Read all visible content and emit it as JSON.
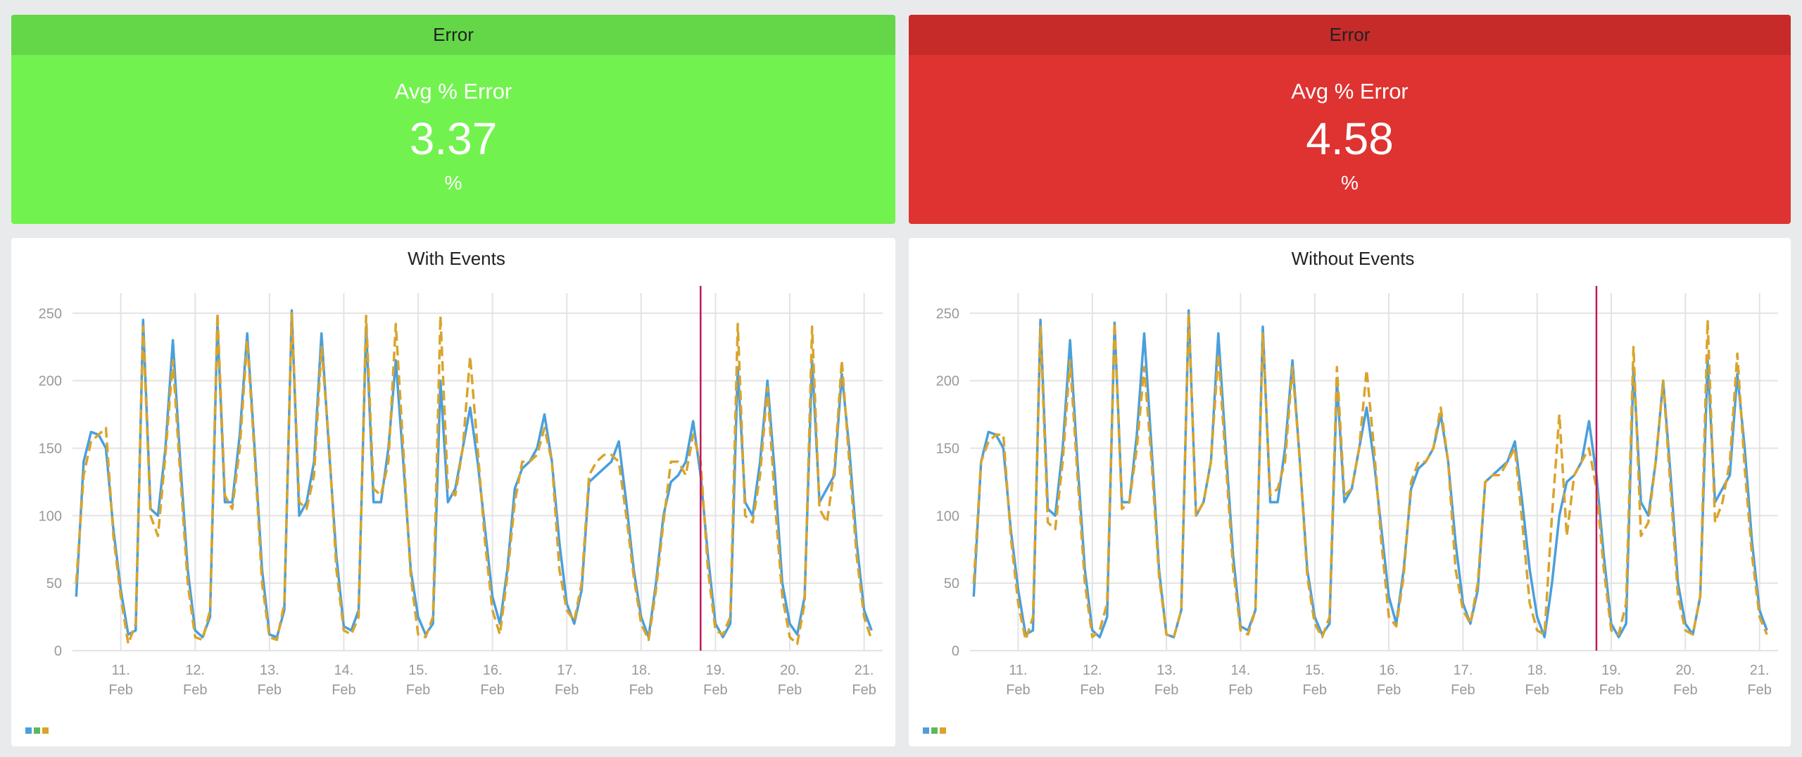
{
  "panels": [
    {
      "header": "Error",
      "label": "Avg % Error",
      "value": "3.37",
      "unit": "%",
      "header_color": "#63d748",
      "color": "#72f24e"
    },
    {
      "header": "Error",
      "label": "Avg % Error",
      "value": "4.58",
      "unit": "%",
      "header_color": "#c62b2a",
      "color": "#de3331"
    }
  ],
  "chart_data": [
    {
      "type": "line",
      "title": "With Events",
      "x": [
        10.4,
        10.5,
        10.6,
        10.7,
        10.8,
        10.9,
        11.0,
        11.1,
        11.2,
        11.3,
        11.4,
        11.5,
        11.6,
        11.7,
        11.8,
        11.9,
        12.0,
        12.1,
        12.2,
        12.3,
        12.4,
        12.5,
        12.6,
        12.7,
        12.8,
        12.9,
        13.0,
        13.1,
        13.2,
        13.3,
        13.4,
        13.5,
        13.6,
        13.7,
        13.8,
        13.9,
        14.0,
        14.1,
        14.2,
        14.3,
        14.4,
        14.5,
        14.6,
        14.7,
        14.8,
        14.9,
        15.0,
        15.1,
        15.2,
        15.3,
        15.4,
        15.5,
        15.6,
        15.7,
        15.8,
        15.9,
        16.0,
        16.1,
        16.2,
        16.3,
        16.4,
        16.5,
        16.6,
        16.7,
        16.8,
        16.9,
        17.0,
        17.1,
        17.2,
        17.3,
        17.4,
        17.5,
        17.6,
        17.7,
        17.8,
        17.9,
        18.0,
        18.1,
        18.2,
        18.3,
        18.4,
        18.5,
        18.6,
        18.7,
        18.8,
        18.9,
        19.0,
        19.1,
        19.2,
        19.3,
        19.4,
        19.5,
        19.6,
        19.7,
        19.8,
        19.9,
        20.0,
        20.1,
        20.2,
        20.3,
        20.4,
        20.5,
        20.6,
        20.7,
        20.8,
        20.9,
        21.0,
        21.1
      ],
      "xlim": [
        10.35,
        21.25
      ],
      "xticks": [
        {
          "value": 11,
          "label": "11. Feb"
        },
        {
          "value": 12,
          "label": "12. Feb"
        },
        {
          "value": 13,
          "label": "13. Feb"
        },
        {
          "value": 14,
          "label": "14. Feb"
        },
        {
          "value": 15,
          "label": "15. Feb"
        },
        {
          "value": 16,
          "label": "16. Feb"
        },
        {
          "value": 17,
          "label": "17. Feb"
        },
        {
          "value": 18,
          "label": "18. Feb"
        },
        {
          "value": 19,
          "label": "19. Feb"
        },
        {
          "value": 20,
          "label": "20. Feb"
        },
        {
          "value": 21,
          "label": "21. Feb"
        }
      ],
      "ylim": [
        0,
        265
      ],
      "yticks": [
        0,
        50,
        100,
        150,
        200,
        250
      ],
      "grid": true,
      "vline": {
        "x": 18.8,
        "color": "#c2185b"
      },
      "legend_colors": [
        "#4a9fdc",
        "#5cb85c",
        "#d9a42c"
      ],
      "series": [
        {
          "color": "#4a9fdc",
          "dashed": false,
          "values": [
            40,
            140,
            162,
            160,
            150,
            90,
            45,
            12,
            15,
            245,
            105,
            100,
            150,
            230,
            140,
            60,
            15,
            10,
            25,
            243,
            110,
            110,
            160,
            235,
            150,
            60,
            12,
            10,
            30,
            252,
            100,
            110,
            140,
            235,
            150,
            70,
            18,
            15,
            30,
            240,
            110,
            110,
            150,
            215,
            140,
            60,
            25,
            12,
            20,
            200,
            110,
            120,
            150,
            180,
            140,
            90,
            40,
            20,
            60,
            120,
            135,
            140,
            150,
            175,
            140,
            80,
            35,
            20,
            45,
            125,
            130,
            135,
            140,
            155,
            110,
            60,
            25,
            10,
            50,
            100,
            125,
            130,
            140,
            170,
            130,
            70,
            20,
            10,
            20,
            210,
            110,
            100,
            140,
            200,
            130,
            50,
            20,
            12,
            40,
            215,
            110,
            120,
            130,
            205,
            150,
            80,
            30,
            15
          ]
        },
        {
          "color": "#d9a42c",
          "dashed": true,
          "values": [
            50,
            130,
            155,
            160,
            165,
            85,
            40,
            5,
            20,
            240,
            100,
            85,
            145,
            215,
            130,
            50,
            10,
            8,
            30,
            250,
            115,
            105,
            150,
            230,
            145,
            50,
            10,
            8,
            35,
            250,
            110,
            105,
            130,
            225,
            155,
            60,
            15,
            12,
            25,
            248,
            120,
            115,
            140,
            242,
            150,
            55,
            12,
            10,
            25,
            248,
            120,
            115,
            150,
            218,
            150,
            80,
            30,
            12,
            55,
            110,
            140,
            140,
            145,
            165,
            140,
            60,
            30,
            22,
            50,
            130,
            140,
            145,
            145,
            140,
            100,
            55,
            20,
            8,
            45,
            95,
            140,
            140,
            130,
            160,
            140,
            60,
            15,
            12,
            25,
            242,
            100,
            95,
            130,
            195,
            110,
            40,
            10,
            5,
            35,
            240,
            105,
            95,
            135,
            215,
            140,
            70,
            25,
            8
          ]
        }
      ]
    },
    {
      "type": "line",
      "title": "Without Events",
      "x": [
        10.4,
        10.5,
        10.6,
        10.7,
        10.8,
        10.9,
        11.0,
        11.1,
        11.2,
        11.3,
        11.4,
        11.5,
        11.6,
        11.7,
        11.8,
        11.9,
        12.0,
        12.1,
        12.2,
        12.3,
        12.4,
        12.5,
        12.6,
        12.7,
        12.8,
        12.9,
        13.0,
        13.1,
        13.2,
        13.3,
        13.4,
        13.5,
        13.6,
        13.7,
        13.8,
        13.9,
        14.0,
        14.1,
        14.2,
        14.3,
        14.4,
        14.5,
        14.6,
        14.7,
        14.8,
        14.9,
        15.0,
        15.1,
        15.2,
        15.3,
        15.4,
        15.5,
        15.6,
        15.7,
        15.8,
        15.9,
        16.0,
        16.1,
        16.2,
        16.3,
        16.4,
        16.5,
        16.6,
        16.7,
        16.8,
        16.9,
        17.0,
        17.1,
        17.2,
        17.3,
        17.4,
        17.5,
        17.6,
        17.7,
        17.8,
        17.9,
        18.0,
        18.1,
        18.2,
        18.3,
        18.4,
        18.5,
        18.6,
        18.7,
        18.8,
        18.9,
        19.0,
        19.1,
        19.2,
        19.3,
        19.4,
        19.5,
        19.6,
        19.7,
        19.8,
        19.9,
        20.0,
        20.1,
        20.2,
        20.3,
        20.4,
        20.5,
        20.6,
        20.7,
        20.8,
        20.9,
        21.0,
        21.1
      ],
      "xlim": [
        10.35,
        21.25
      ],
      "xticks": [
        {
          "value": 11,
          "label": "11. Feb"
        },
        {
          "value": 12,
          "label": "12. Feb"
        },
        {
          "value": 13,
          "label": "13. Feb"
        },
        {
          "value": 14,
          "label": "14. Feb"
        },
        {
          "value": 15,
          "label": "15. Feb"
        },
        {
          "value": 16,
          "label": "16. Feb"
        },
        {
          "value": 17,
          "label": "17. Feb"
        },
        {
          "value": 18,
          "label": "18. Feb"
        },
        {
          "value": 19,
          "label": "19. Feb"
        },
        {
          "value": 20,
          "label": "20. Feb"
        },
        {
          "value": 21,
          "label": "21. Feb"
        }
      ],
      "ylim": [
        0,
        265
      ],
      "yticks": [
        0,
        50,
        100,
        150,
        200,
        250
      ],
      "grid": true,
      "vline": {
        "x": 18.8,
        "color": "#c2185b"
      },
      "legend_colors": [
        "#4a9fdc",
        "#5cb85c",
        "#d9a42c"
      ],
      "series": [
        {
          "color": "#4a9fdc",
          "dashed": false,
          "values": [
            40,
            140,
            162,
            160,
            150,
            90,
            45,
            12,
            15,
            245,
            105,
            100,
            150,
            230,
            140,
            60,
            15,
            10,
            25,
            243,
            110,
            110,
            160,
            235,
            150,
            60,
            12,
            10,
            30,
            252,
            100,
            110,
            140,
            235,
            150,
            70,
            18,
            15,
            30,
            240,
            110,
            110,
            150,
            215,
            140,
            60,
            25,
            12,
            20,
            200,
            110,
            120,
            150,
            180,
            140,
            90,
            40,
            20,
            60,
            120,
            135,
            140,
            150,
            175,
            140,
            80,
            35,
            20,
            45,
            125,
            130,
            135,
            140,
            155,
            110,
            60,
            25,
            10,
            50,
            100,
            125,
            130,
            140,
            170,
            130,
            70,
            20,
            10,
            20,
            210,
            110,
            100,
            140,
            200,
            130,
            50,
            20,
            12,
            40,
            215,
            110,
            120,
            130,
            205,
            150,
            80,
            30,
            15
          ]
        },
        {
          "color": "#d9a42c",
          "dashed": true,
          "values": [
            50,
            140,
            155,
            160,
            160,
            85,
            35,
            8,
            25,
            240,
            95,
            90,
            140,
            215,
            130,
            50,
            10,
            15,
            35,
            243,
            105,
            110,
            150,
            210,
            140,
            55,
            12,
            10,
            30,
            250,
            100,
            110,
            140,
            220,
            140,
            60,
            15,
            12,
            30,
            235,
            115,
            120,
            140,
            210,
            140,
            55,
            20,
            10,
            25,
            210,
            115,
            120,
            150,
            208,
            150,
            80,
            25,
            18,
            55,
            125,
            140,
            140,
            150,
            180,
            140,
            60,
            30,
            20,
            50,
            125,
            130,
            130,
            140,
            150,
            95,
            35,
            15,
            12,
            100,
            175,
            85,
            130,
            140,
            150,
            120,
            60,
            15,
            12,
            35,
            225,
            85,
            95,
            140,
            200,
            120,
            40,
            15,
            12,
            40,
            245,
            95,
            110,
            140,
            220,
            135,
            70,
            25,
            12
          ]
        }
      ]
    }
  ]
}
